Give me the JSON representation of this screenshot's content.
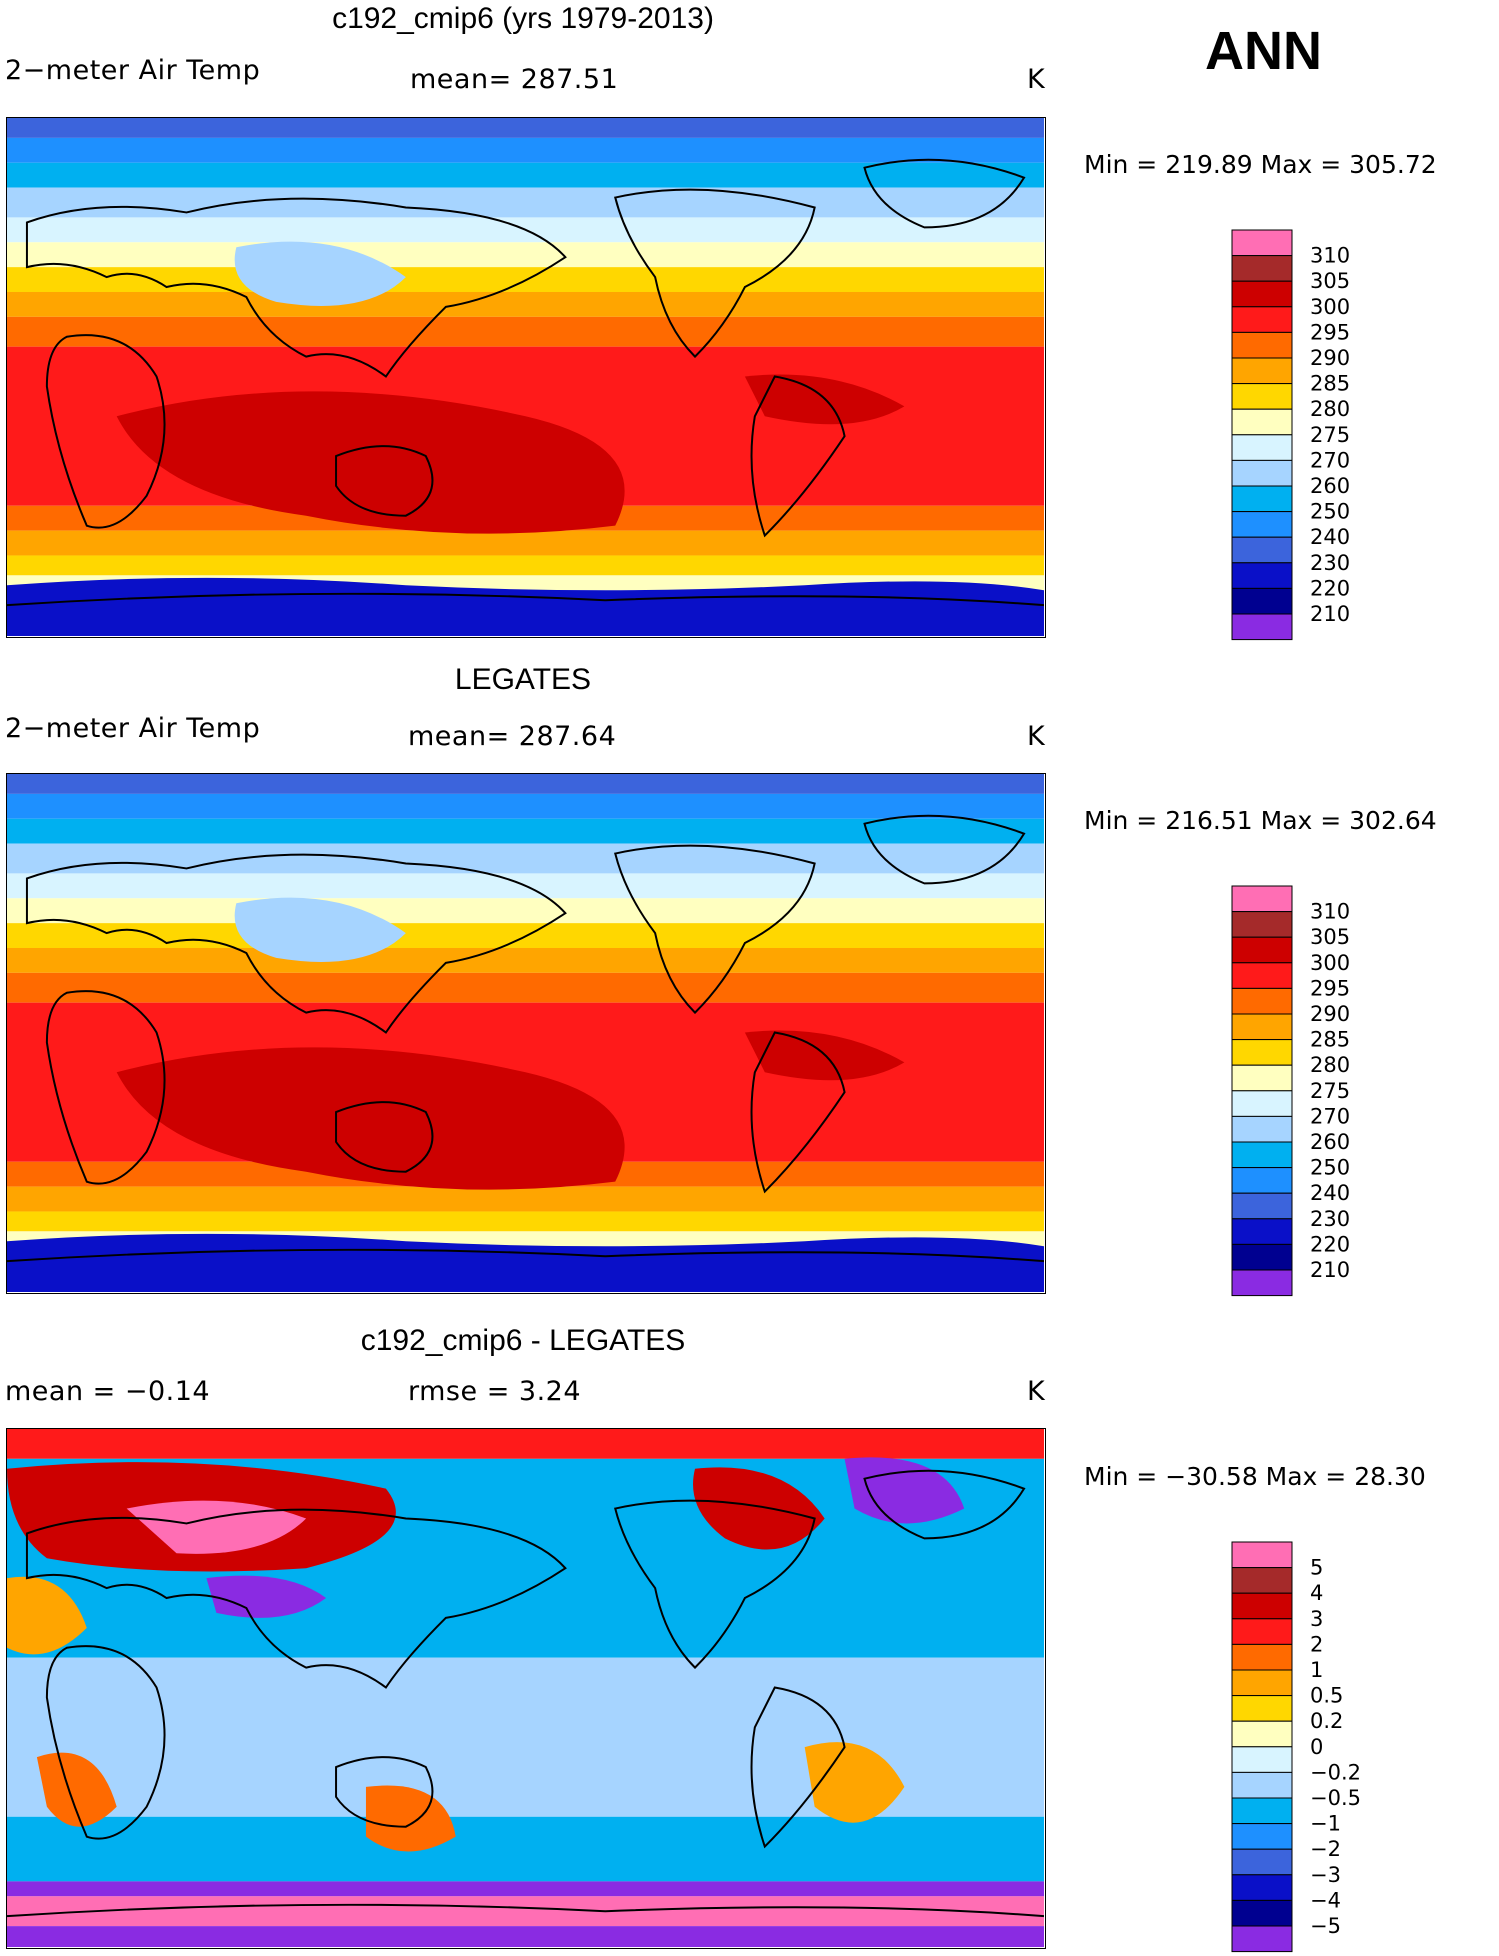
{
  "header": {
    "season": "ANN"
  },
  "panels": [
    {
      "id": "model",
      "title": "c192_cmip6 (yrs 1979-2013)",
      "left_label": "2−meter Air Temp",
      "center_label": "mean= 287.51",
      "units": "K",
      "minmax": "Min = 219.89 Max = 305.72",
      "fill": "absolute"
    },
    {
      "id": "obs",
      "title": "LEGATES",
      "left_label": "2−meter Air Temp",
      "center_label": "mean= 287.64",
      "units": "K",
      "minmax": "Min = 216.51 Max = 302.64",
      "fill": "absolute"
    },
    {
      "id": "diff",
      "title": "c192_cmip6 - LEGATES",
      "left_label": "mean =   −0.14",
      "center_label": "rmse =    3.24",
      "units": "K",
      "minmax": "Min = −30.58 Max =  28.30",
      "fill": "difference"
    }
  ],
  "chart_data": [
    {
      "type": "heatmap",
      "title": "c192_cmip6 (yrs 1979-2013)",
      "variable": "2-meter Air Temp",
      "units": "K",
      "mean": 287.51,
      "min": 219.89,
      "max": 305.72,
      "colorbar": {
        "labels": [
          "310",
          "305",
          "300",
          "295",
          "290",
          "285",
          "280",
          "275",
          "270",
          "260",
          "250",
          "240",
          "230",
          "220",
          "210"
        ],
        "colors": [
          "#ff6eb4",
          "#a52a2a",
          "#cd0000",
          "#ff1a1a",
          "#ff6a00",
          "#ffa500",
          "#ffd700",
          "#ffffc0",
          "#d8f4ff",
          "#a6d4ff",
          "#00b0f0",
          "#1e90ff",
          "#3c64dc",
          "#0a10c8",
          "#000090",
          "#8a2be2"
        ]
      }
    },
    {
      "type": "heatmap",
      "title": "LEGATES",
      "variable": "2-meter Air Temp",
      "units": "K",
      "mean": 287.64,
      "min": 216.51,
      "max": 302.64,
      "colorbar": {
        "labels": [
          "310",
          "305",
          "300",
          "295",
          "290",
          "285",
          "280",
          "275",
          "270",
          "260",
          "250",
          "240",
          "230",
          "220",
          "210"
        ],
        "colors": [
          "#ff6eb4",
          "#a52a2a",
          "#cd0000",
          "#ff1a1a",
          "#ff6a00",
          "#ffa500",
          "#ffd700",
          "#ffffc0",
          "#d8f4ff",
          "#a6d4ff",
          "#00b0f0",
          "#1e90ff",
          "#3c64dc",
          "#0a10c8",
          "#000090",
          "#8a2be2"
        ]
      }
    },
    {
      "type": "heatmap",
      "title": "c192_cmip6 - LEGATES",
      "units": "K",
      "mean": -0.14,
      "rmse": 3.24,
      "min": -30.58,
      "max": 28.3,
      "colorbar": {
        "labels": [
          "5",
          "4",
          "3",
          "2",
          "1",
          "0.5",
          "0.2",
          "0",
          "−0.2",
          "−0.5",
          "−1",
          "−2",
          "−3",
          "−4",
          "−5"
        ],
        "colors": [
          "#ff6eb4",
          "#a52a2a",
          "#cd0000",
          "#ff1a1a",
          "#ff6a00",
          "#ffa500",
          "#ffd700",
          "#ffffc0",
          "#d8f4ff",
          "#a6d4ff",
          "#00b0f0",
          "#1e90ff",
          "#3c64dc",
          "#0a10c8",
          "#000090",
          "#8a2be2"
        ]
      }
    }
  ]
}
